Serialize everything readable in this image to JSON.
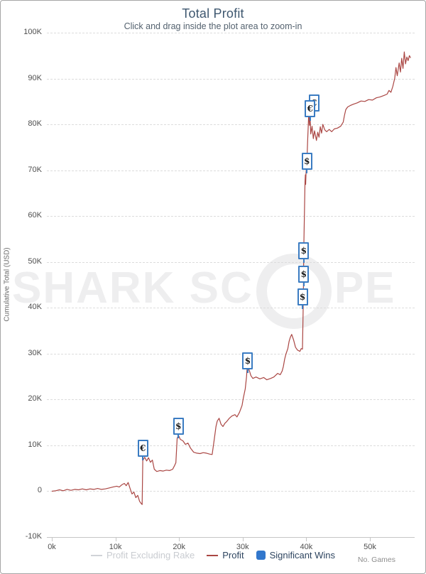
{
  "header": {
    "title": "Total Profit",
    "subtitle": "Click and drag inside the plot area to zoom-in"
  },
  "watermark": {
    "part1": "SHARK SC",
    "part2": "PE"
  },
  "y_axis": {
    "title": "Cumulative Total (USD)",
    "ticks": [
      {
        "label": "100K",
        "value": 100
      },
      {
        "label": "90K",
        "value": 90
      },
      {
        "label": "80K",
        "value": 80
      },
      {
        "label": "70K",
        "value": 70
      },
      {
        "label": "60K",
        "value": 60
      },
      {
        "label": "50K",
        "value": 50
      },
      {
        "label": "40K",
        "value": 40
      },
      {
        "label": "30K",
        "value": 30
      },
      {
        "label": "20K",
        "value": 20
      },
      {
        "label": "10K",
        "value": 10
      },
      {
        "label": "0",
        "value": 0
      },
      {
        "label": "-10K",
        "value": -10
      }
    ]
  },
  "x_axis": {
    "title": "No. Games",
    "ticks": [
      {
        "label": "0k",
        "value": 0
      },
      {
        "label": "10k",
        "value": 10
      },
      {
        "label": "20k",
        "value": 20
      },
      {
        "label": "30k",
        "value": 30
      },
      {
        "label": "40k",
        "value": 40
      },
      {
        "label": "50k",
        "value": 50
      }
    ]
  },
  "legend": {
    "items": [
      {
        "label": "Profit Excluding Rake",
        "swatch": "line",
        "color": "#d0d3d8",
        "text_color": "#c9ccd1",
        "hidden": true
      },
      {
        "label": "Profit",
        "swatch": "line",
        "color": "#AA4643",
        "text_color": "#2e4560",
        "hidden": false
      },
      {
        "label": "Significant Wins",
        "swatch": "square",
        "color": "#3277cc",
        "text_color": "#2e4560",
        "hidden": false
      }
    ]
  },
  "chart_data": {
    "type": "line",
    "title": "Total Profit",
    "subtitle": "Click and drag inside the plot area to zoom-in",
    "xlabel": "No. Games",
    "ylabel": "Cumulative Total (USD)",
    "x_unit": "thousand games",
    "y_unit": "thousand USD",
    "xlim": [
      0,
      57.8
    ],
    "ylim": [
      -10,
      100
    ],
    "grid": "horizontal-dashed",
    "legend_position": "bottom-center",
    "line_color": "#AA4643",
    "hidden_series": [
      "Profit Excluding Rake"
    ],
    "series": [
      {
        "name": "Profit",
        "points": [
          [
            0,
            0
          ],
          [
            0.6,
            0.1
          ],
          [
            1.2,
            0.3
          ],
          [
            1.8,
            0.1
          ],
          [
            2.4,
            0.4
          ],
          [
            3.0,
            0.2
          ],
          [
            3.6,
            0.4
          ],
          [
            4.2,
            0.3
          ],
          [
            4.8,
            0.5
          ],
          [
            5.4,
            0.3
          ],
          [
            6.0,
            0.5
          ],
          [
            6.6,
            0.4
          ],
          [
            7.2,
            0.6
          ],
          [
            7.8,
            0.4
          ],
          [
            8.4,
            0.5
          ],
          [
            9.0,
            0.7
          ],
          [
            9.6,
            0.9
          ],
          [
            10.2,
            1.1
          ],
          [
            10.6,
            0.9
          ],
          [
            11.0,
            1.4
          ],
          [
            11.4,
            1.7
          ],
          [
            11.7,
            1.2
          ],
          [
            12.0,
            1.9
          ],
          [
            12.3,
            0.6
          ],
          [
            12.6,
            -0.6
          ],
          [
            12.9,
            -0.2
          ],
          [
            13.2,
            -1.4
          ],
          [
            13.5,
            -0.9
          ],
          [
            13.8,
            -2.2
          ],
          [
            14.0,
            -2.6
          ],
          [
            14.2,
            -2.9
          ],
          [
            14.3,
            6.7
          ],
          [
            14.6,
            7.4
          ],
          [
            14.9,
            6.6
          ],
          [
            15.2,
            7.3
          ],
          [
            15.5,
            6.3
          ],
          [
            15.8,
            6.8
          ],
          [
            16.1,
            4.8
          ],
          [
            16.5,
            4.3
          ],
          [
            17.0,
            4.5
          ],
          [
            17.5,
            4.4
          ],
          [
            18.0,
            4.6
          ],
          [
            18.5,
            4.5
          ],
          [
            19.0,
            4.8
          ],
          [
            19.3,
            5.6
          ],
          [
            19.5,
            6.2
          ],
          [
            19.7,
            11.5
          ],
          [
            19.9,
            12.2
          ],
          [
            20.2,
            11.3
          ],
          [
            20.6,
            11.0
          ],
          [
            21.0,
            10.2
          ],
          [
            21.4,
            10.5
          ],
          [
            21.8,
            9.4
          ],
          [
            22.3,
            8.5
          ],
          [
            22.8,
            8.3
          ],
          [
            23.3,
            8.2
          ],
          [
            23.8,
            8.4
          ],
          [
            24.3,
            8.3
          ],
          [
            24.8,
            8.1
          ],
          [
            25.2,
            8.0
          ],
          [
            25.5,
            11.0
          ],
          [
            25.8,
            14.1
          ],
          [
            26.0,
            15.3
          ],
          [
            26.3,
            15.9
          ],
          [
            26.6,
            14.6
          ],
          [
            26.9,
            14.1
          ],
          [
            27.2,
            14.8
          ],
          [
            27.5,
            15.2
          ],
          [
            27.9,
            15.9
          ],
          [
            28.3,
            16.4
          ],
          [
            28.8,
            16.7
          ],
          [
            29.1,
            16.2
          ],
          [
            29.5,
            17.2
          ],
          [
            29.9,
            18.7
          ],
          [
            30.1,
            20.3
          ],
          [
            30.4,
            22.3
          ],
          [
            30.6,
            24.9
          ],
          [
            30.7,
            26.9
          ],
          [
            31.0,
            26.5
          ],
          [
            31.3,
            25.2
          ],
          [
            31.6,
            24.6
          ],
          [
            32.1,
            24.9
          ],
          [
            32.7,
            24.5
          ],
          [
            33.3,
            24.8
          ],
          [
            33.8,
            24.3
          ],
          [
            34.4,
            24.6
          ],
          [
            34.9,
            24.9
          ],
          [
            35.5,
            25.7
          ],
          [
            35.9,
            25.4
          ],
          [
            36.2,
            26.2
          ],
          [
            36.4,
            27.2
          ],
          [
            36.6,
            28.8
          ],
          [
            36.8,
            29.9
          ],
          [
            37.1,
            31.1
          ],
          [
            37.3,
            32.7
          ],
          [
            37.5,
            33.6
          ],
          [
            37.7,
            34.2
          ],
          [
            38.0,
            33.0
          ],
          [
            38.3,
            31.4
          ],
          [
            38.6,
            30.8
          ],
          [
            39.0,
            30.5
          ],
          [
            39.2,
            31.1
          ],
          [
            39.4,
            31.0
          ],
          [
            39.5,
            38.9
          ],
          [
            39.55,
            45.0
          ],
          [
            39.6,
            52.5
          ],
          [
            39.7,
            60.0
          ],
          [
            39.8,
            67.5
          ],
          [
            39.85,
            69.0
          ],
          [
            39.9,
            66.9
          ],
          [
            39.95,
            69.3
          ],
          [
            40.0,
            70.5
          ],
          [
            40.1,
            72.0
          ],
          [
            40.2,
            76.0
          ],
          [
            40.3,
            79.5
          ],
          [
            40.4,
            83.0
          ],
          [
            40.5,
            79.8
          ],
          [
            40.6,
            81.2
          ],
          [
            40.7,
            77.9
          ],
          [
            40.9,
            79.6
          ],
          [
            41.1,
            76.9
          ],
          [
            41.3,
            78.6
          ],
          [
            41.6,
            76.5
          ],
          [
            41.8,
            78.3
          ],
          [
            42.0,
            77.2
          ],
          [
            42.2,
            79.5
          ],
          [
            42.4,
            78.1
          ],
          [
            42.6,
            80.0
          ],
          [
            42.9,
            78.8
          ],
          [
            43.2,
            78.4
          ],
          [
            43.6,
            78.9
          ],
          [
            44.0,
            78.4
          ],
          [
            44.4,
            79.0
          ],
          [
            44.9,
            79.2
          ],
          [
            45.4,
            79.6
          ],
          [
            45.8,
            80.5
          ],
          [
            46.0,
            82.0
          ],
          [
            46.2,
            83.2
          ],
          [
            46.5,
            83.8
          ],
          [
            46.9,
            84.1
          ],
          [
            47.4,
            84.4
          ],
          [
            48.0,
            84.7
          ],
          [
            48.6,
            85.1
          ],
          [
            49.2,
            85.0
          ],
          [
            49.8,
            85.4
          ],
          [
            50.4,
            85.3
          ],
          [
            51.0,
            85.8
          ],
          [
            51.6,
            86.0
          ],
          [
            52.2,
            86.3
          ],
          [
            52.7,
            86.6
          ],
          [
            53.0,
            87.4
          ],
          [
            53.3,
            87.0
          ],
          [
            53.6,
            88.3
          ],
          [
            53.9,
            90.0
          ],
          [
            54.1,
            92.4
          ],
          [
            54.3,
            90.6
          ],
          [
            54.6,
            93.4
          ],
          [
            54.8,
            91.4
          ],
          [
            55.0,
            94.4
          ],
          [
            55.2,
            92.2
          ],
          [
            55.4,
            95.8
          ],
          [
            55.6,
            93.2
          ],
          [
            55.8,
            94.7
          ],
          [
            56.0,
            93.9
          ],
          [
            56.2,
            95.0
          ],
          [
            56.4,
            94.5
          ]
        ]
      }
    ],
    "significant_wins": [
      {
        "symbol": "€",
        "x": 14.3,
        "y": 9.4
      },
      {
        "symbol": "$",
        "x": 19.9,
        "y": 14.1
      },
      {
        "symbol": "$",
        "x": 30.8,
        "y": 28.5
      },
      {
        "symbol": "$",
        "x": 39.4,
        "y": 42.4
      },
      {
        "symbol": "$",
        "x": 39.6,
        "y": 47.4
      },
      {
        "symbol": "$",
        "x": 39.6,
        "y": 52.5
      },
      {
        "symbol": "$",
        "x": 40.1,
        "y": 72.0
      },
      {
        "symbol": "€",
        "x": 41.2,
        "y": 84.6
      },
      {
        "symbol": "€",
        "x": 40.6,
        "y": 83.5
      }
    ],
    "marker_color": "#3b7cc2"
  }
}
